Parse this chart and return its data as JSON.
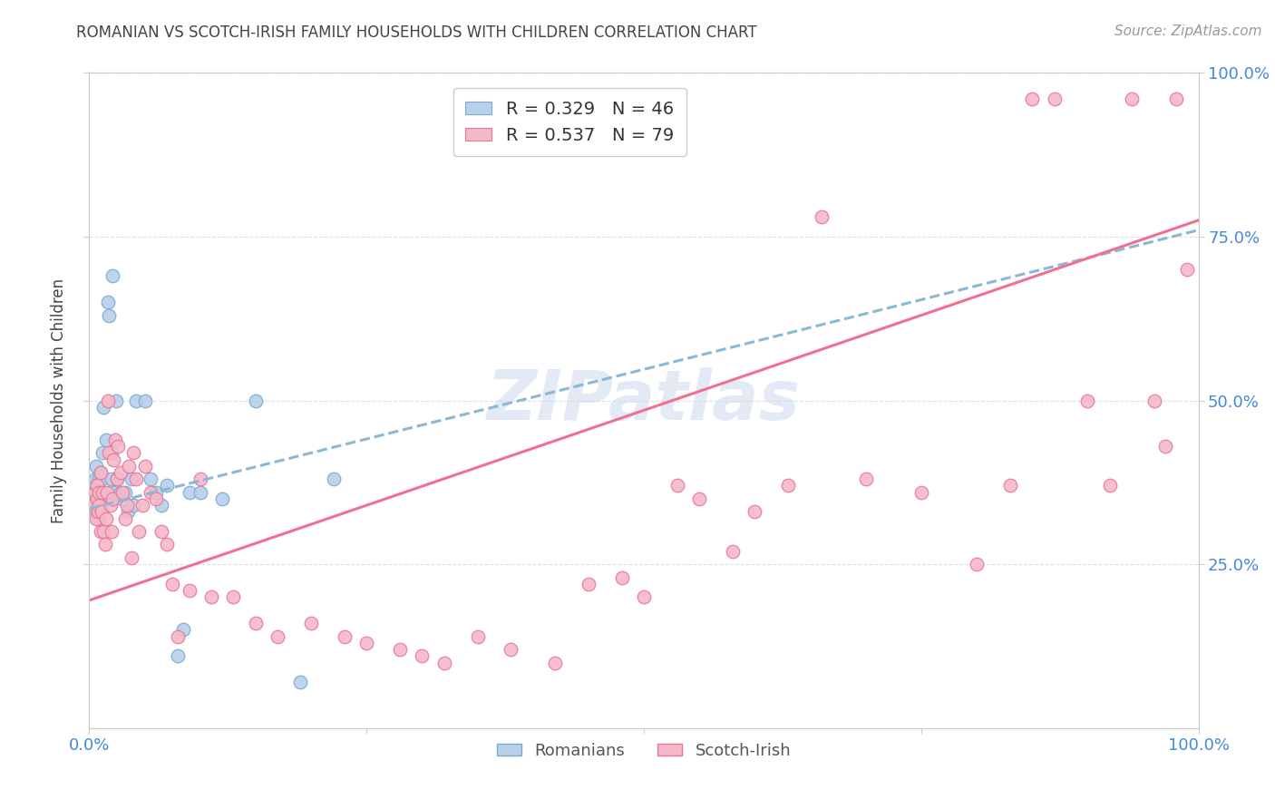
{
  "title": "ROMANIAN VS SCOTCH-IRISH FAMILY HOUSEHOLDS WITH CHILDREN CORRELATION CHART",
  "source": "Source: ZipAtlas.com",
  "ylabel": "Family Households with Children",
  "watermark": "ZIPatlas",
  "legend_romanian": "R = 0.329   N = 46",
  "legend_scotch": "R = 0.537   N = 79",
  "romanian_fill": "#b8d0ea",
  "scotch_fill": "#f5b8c8",
  "romanian_edge": "#7aaad0",
  "scotch_edge": "#e87898",
  "romanian_line": "#8ab8d8",
  "scotch_line": "#f07090",
  "label_color": "#4488dd",
  "title_color": "#444444",
  "background_color": "#ffffff",
  "grid_color": "#e0e0e0",
  "romanians_x": [
    0.004,
    0.005,
    0.006,
    0.006,
    0.007,
    0.007,
    0.008,
    0.008,
    0.009,
    0.009,
    0.01,
    0.01,
    0.011,
    0.012,
    0.013,
    0.014,
    0.015,
    0.016,
    0.017,
    0.018,
    0.02,
    0.02,
    0.021,
    0.022,
    0.024,
    0.025,
    0.028,
    0.03,
    0.032,
    0.035,
    0.038,
    0.04,
    0.042,
    0.05,
    0.055,
    0.06,
    0.065,
    0.07,
    0.08,
    0.085,
    0.09,
    0.1,
    0.12,
    0.15,
    0.19,
    0.22
  ],
  "romanians_y": [
    0.36,
    0.38,
    0.33,
    0.4,
    0.34,
    0.37,
    0.35,
    0.36,
    0.32,
    0.38,
    0.34,
    0.39,
    0.38,
    0.42,
    0.49,
    0.36,
    0.44,
    0.35,
    0.65,
    0.63,
    0.38,
    0.42,
    0.69,
    0.36,
    0.5,
    0.38,
    0.36,
    0.35,
    0.36,
    0.33,
    0.38,
    0.34,
    0.5,
    0.5,
    0.38,
    0.36,
    0.34,
    0.37,
    0.11,
    0.15,
    0.36,
    0.36,
    0.35,
    0.5,
    0.07,
    0.38
  ],
  "scotch_x": [
    0.004,
    0.005,
    0.006,
    0.007,
    0.007,
    0.008,
    0.009,
    0.009,
    0.01,
    0.01,
    0.011,
    0.012,
    0.013,
    0.014,
    0.015,
    0.016,
    0.017,
    0.018,
    0.019,
    0.02,
    0.021,
    0.022,
    0.023,
    0.025,
    0.026,
    0.028,
    0.03,
    0.032,
    0.034,
    0.036,
    0.038,
    0.04,
    0.042,
    0.045,
    0.048,
    0.05,
    0.055,
    0.06,
    0.065,
    0.07,
    0.075,
    0.08,
    0.09,
    0.1,
    0.11,
    0.13,
    0.15,
    0.17,
    0.2,
    0.23,
    0.25,
    0.28,
    0.3,
    0.32,
    0.35,
    0.38,
    0.42,
    0.45,
    0.48,
    0.5,
    0.53,
    0.55,
    0.58,
    0.6,
    0.63,
    0.66,
    0.7,
    0.75,
    0.8,
    0.83,
    0.85,
    0.87,
    0.9,
    0.92,
    0.94,
    0.96,
    0.97,
    0.98,
    0.99
  ],
  "scotch_y": [
    0.34,
    0.36,
    0.32,
    0.35,
    0.37,
    0.33,
    0.34,
    0.36,
    0.3,
    0.39,
    0.33,
    0.36,
    0.3,
    0.28,
    0.32,
    0.36,
    0.5,
    0.42,
    0.34,
    0.3,
    0.35,
    0.41,
    0.44,
    0.38,
    0.43,
    0.39,
    0.36,
    0.32,
    0.34,
    0.4,
    0.26,
    0.42,
    0.38,
    0.3,
    0.34,
    0.4,
    0.36,
    0.35,
    0.3,
    0.28,
    0.22,
    0.14,
    0.21,
    0.38,
    0.2,
    0.2,
    0.16,
    0.14,
    0.16,
    0.14,
    0.13,
    0.12,
    0.11,
    0.1,
    0.14,
    0.12,
    0.1,
    0.22,
    0.23,
    0.2,
    0.37,
    0.35,
    0.27,
    0.33,
    0.37,
    0.78,
    0.38,
    0.36,
    0.25,
    0.37,
    0.96,
    0.96,
    0.5,
    0.37,
    0.96,
    0.5,
    0.43,
    0.96,
    0.7
  ],
  "romanian_trend_x": [
    0.0,
    1.0
  ],
  "romanian_trend_y": [
    0.335,
    0.76
  ],
  "scotch_trend_x": [
    0.0,
    1.0
  ],
  "scotch_trend_y": [
    0.195,
    0.775
  ],
  "xlim": [
    0.0,
    1.0
  ],
  "ylim": [
    0.0,
    1.0
  ],
  "xticks": [
    0.0,
    0.25,
    0.5,
    0.75,
    1.0
  ],
  "xticklabels": [
    "0.0%",
    "",
    "",
    "",
    "100.0%"
  ],
  "yticks": [
    0.25,
    0.5,
    0.75,
    1.0
  ],
  "yticklabels": [
    "25.0%",
    "50.0%",
    "75.0%",
    "100.0%"
  ]
}
